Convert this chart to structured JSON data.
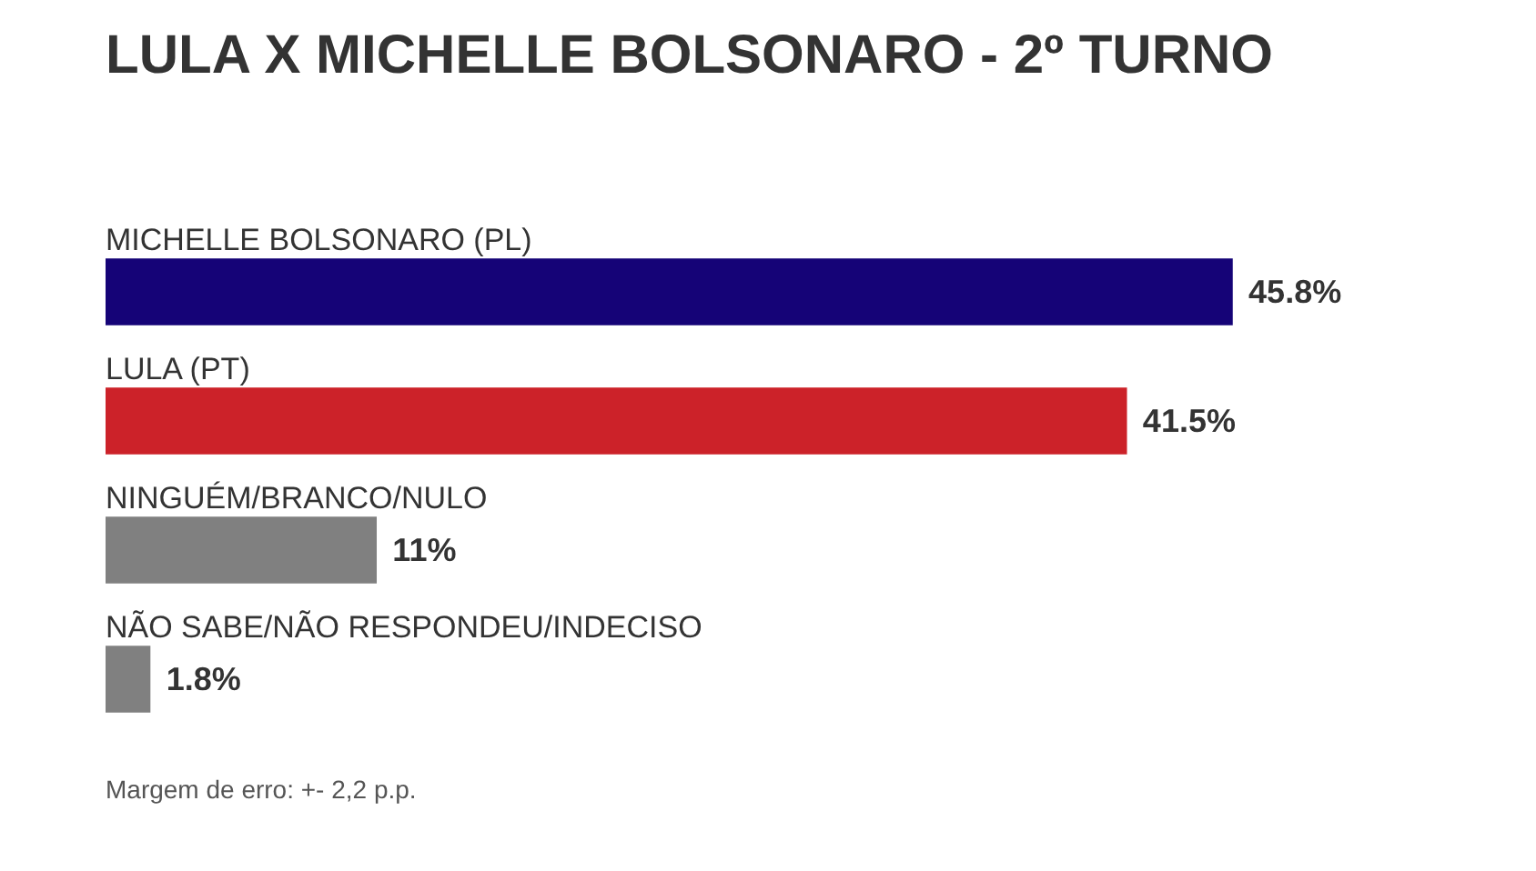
{
  "chart_data": {
    "type": "bar",
    "orientation": "horizontal",
    "title": "LULA X MICHELLE BOLSONARO - 2º TURNO",
    "categories": [
      "MICHELLE BOLSONARO (PL)",
      "LULA (PT)",
      "NINGUÉM/BRANCO/NULO",
      "NÃO SABE/NÃO RESPONDEU/INDECISO"
    ],
    "values": [
      45.8,
      41.5,
      11,
      1.8
    ],
    "colors": [
      "#150377",
      "#cc2229",
      "#808080",
      "#808080"
    ],
    "value_labels": [
      "45.8%",
      "41.5%",
      "11%",
      "1.8%"
    ],
    "tick_labels": "y",
    "annotations": [
      "Margem de erro: +- 2,2 p.p."
    ]
  }
}
